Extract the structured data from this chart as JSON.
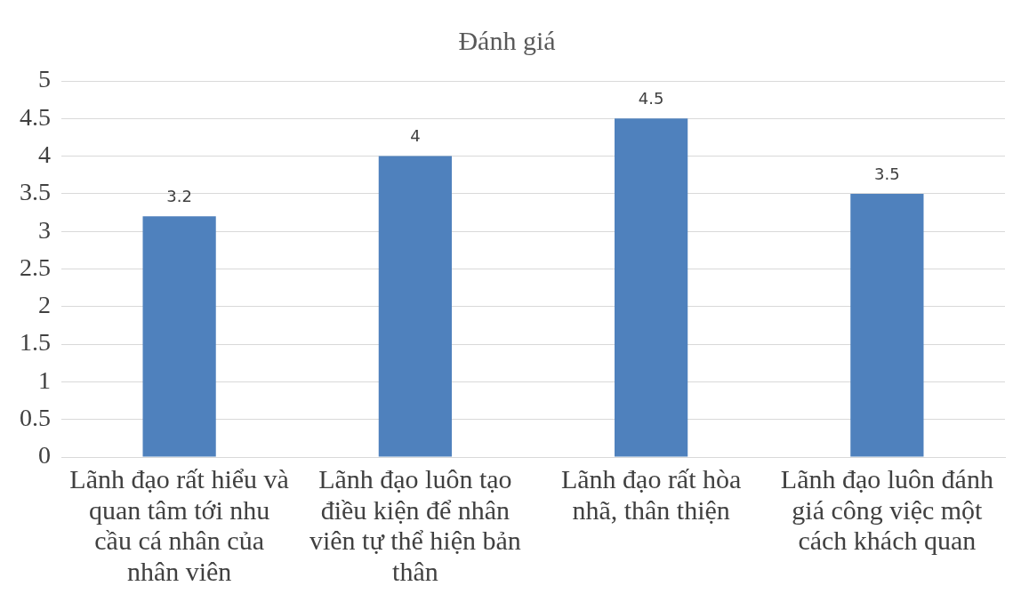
{
  "chart_data": {
    "type": "bar",
    "title": "Đánh giá",
    "categories": [
      "Lãnh đạo rất hiểu và quan tâm tới nhu cầu cá nhân của nhân viên",
      "Lãnh đạo luôn tạo điều kiện để nhân viên tự thể hiện bản thân",
      "Lãnh đạo rất hòa nhã, thân thiện",
      "Lãnh đạo luôn đánh giá công việc một cách khách quan"
    ],
    "values": [
      3.2,
      4,
      4.5,
      3.5
    ],
    "color": "#4f81bd",
    "ylim": [
      0,
      5
    ],
    "yticks": [
      0,
      0.5,
      1,
      1.5,
      2,
      2.5,
      3,
      3.5,
      4,
      4.5,
      5
    ],
    "grid": "y",
    "data_labels": true,
    "legend": false
  }
}
